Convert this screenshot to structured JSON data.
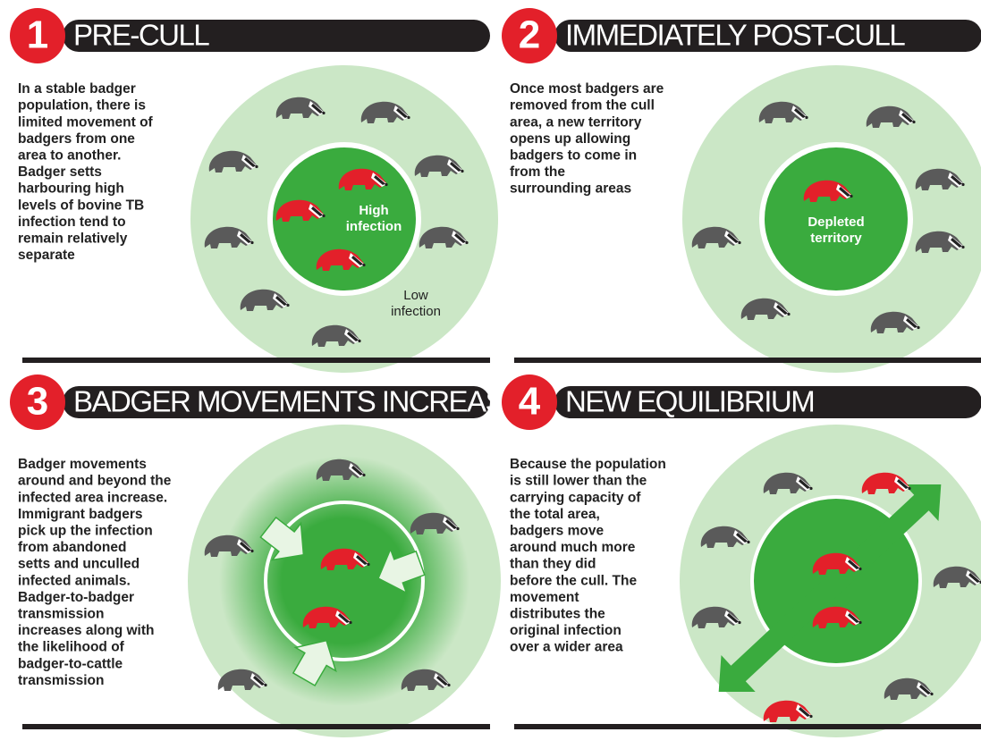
{
  "panels": [
    {
      "number": "1",
      "title": "PRE-CULL",
      "text": [
        "In a stable badger",
        "population, there is",
        "limited movement of",
        "badgers from one",
        "area to another.",
        "Badger setts",
        "harbouring high",
        "levels of bovine TB",
        "infection tend to",
        "remain relatively",
        "separate"
      ],
      "labels": [
        {
          "lines": [
            "High",
            "infection"
          ]
        },
        {
          "lines": [
            "Low",
            "infection"
          ]
        }
      ]
    },
    {
      "number": "2",
      "title": "IMMEDIATELY POST-CULL",
      "text": [
        "Once most badgers are",
        "removed from the cull",
        "area, a new territory",
        "opens up allowing",
        "badgers to come in",
        "from the",
        "surrounding areas"
      ],
      "labels": [
        {
          "lines": [
            "Depleted",
            "territory"
          ]
        }
      ]
    },
    {
      "number": "3",
      "title": "BADGER MOVEMENTS INCREASE",
      "text": [
        "Badger movements",
        "around and beyond the",
        "infected area increase.",
        "Immigrant badgers",
        "pick up the infection",
        "from abandoned",
        "setts and unculled",
        "infected animals.",
        "Badger-to-badger",
        "transmission",
        "increases along with",
        "the likelihood of",
        "badger-to-cattle",
        "transmission"
      ],
      "labels": []
    },
    {
      "number": "4",
      "title": "NEW EQUILIBRIUM",
      "text": [
        "Because the population",
        "is still lower than the",
        "carrying capacity of",
        "the total area,",
        "badgers move",
        "around much more",
        "than they did",
        "before the cull. The",
        "movement",
        "distributes the",
        "original infection",
        "over a wider area"
      ],
      "labels": []
    }
  ]
}
